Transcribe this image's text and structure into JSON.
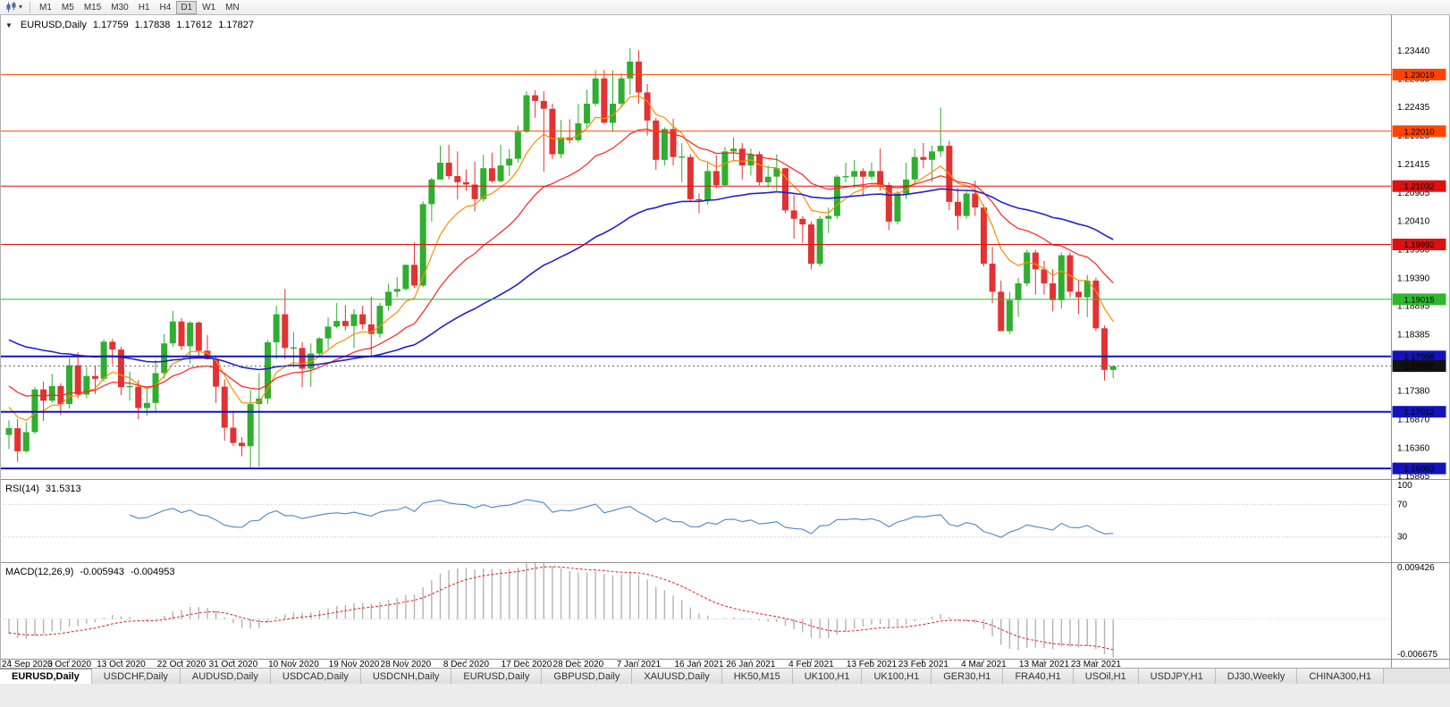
{
  "colors": {
    "candle_up": "#2fae2f",
    "candle_down": "#e23232",
    "accent_blue": "#1313bb",
    "accent_red": "#dd1111",
    "accent_orangered": "#ff4500",
    "accent_green": "#2db82d"
  },
  "toolbar": {
    "timeframes": [
      "M1",
      "M5",
      "M15",
      "M30",
      "H1",
      "H4",
      "D1",
      "W1",
      "MN"
    ],
    "active": "D1"
  },
  "header": {
    "symbol_tf": "EURUSD,Daily",
    "open": "1.17759",
    "high": "1.17838",
    "low": "1.17612",
    "close": "1.17827"
  },
  "chart_data": {
    "type": "candlestick",
    "symbol": "EURUSD",
    "timeframe": "Daily",
    "candles": [
      [
        1.166,
        1.1686,
        1.1635,
        1.1672
      ],
      [
        1.1672,
        1.1688,
        1.1612,
        1.1631
      ],
      [
        1.1631,
        1.1683,
        1.1628,
        1.1665
      ],
      [
        1.1665,
        1.1745,
        1.1662,
        1.1741
      ],
      [
        1.1741,
        1.1755,
        1.1685,
        1.1721
      ],
      [
        1.1721,
        1.1769,
        1.1717,
        1.1747
      ],
      [
        1.1747,
        1.1752,
        1.1695,
        1.1715
      ],
      [
        1.1715,
        1.1797,
        1.1707,
        1.1784
      ],
      [
        1.1784,
        1.1807,
        1.1725,
        1.1732
      ],
      [
        1.1732,
        1.1781,
        1.1725,
        1.1765
      ],
      [
        1.1765,
        1.1782,
        1.1733,
        1.176
      ],
      [
        1.176,
        1.183,
        1.1755,
        1.1826
      ],
      [
        1.1826,
        1.1831,
        1.1785,
        1.1812
      ],
      [
        1.1812,
        1.1817,
        1.1731,
        1.1745
      ],
      [
        1.1745,
        1.1773,
        1.1721,
        1.1746
      ],
      [
        1.1746,
        1.1758,
        1.1688,
        1.1708
      ],
      [
        1.1708,
        1.1747,
        1.1694,
        1.1717
      ],
      [
        1.1717,
        1.1794,
        1.1703,
        1.177
      ],
      [
        1.177,
        1.184,
        1.176,
        1.1823
      ],
      [
        1.1823,
        1.1881,
        1.1817,
        1.1862
      ],
      [
        1.1862,
        1.1868,
        1.1811,
        1.1818
      ],
      [
        1.1818,
        1.1863,
        1.1787,
        1.186
      ],
      [
        1.186,
        1.1863,
        1.18,
        1.181
      ],
      [
        1.181,
        1.1838,
        1.1794,
        1.1795
      ],
      [
        1.1795,
        1.18,
        1.1717,
        1.1746
      ],
      [
        1.1746,
        1.1759,
        1.165,
        1.1673
      ],
      [
        1.1673,
        1.1703,
        1.164,
        1.1646
      ],
      [
        1.1646,
        1.1656,
        1.1622,
        1.164
      ],
      [
        1.164,
        1.174,
        1.1602,
        1.1715
      ],
      [
        1.1715,
        1.177,
        1.1603,
        1.1725
      ],
      [
        1.1725,
        1.1829,
        1.1715,
        1.1825
      ],
      [
        1.1825,
        1.189,
        1.1795,
        1.1875
      ],
      [
        1.1875,
        1.192,
        1.1795,
        1.1815
      ],
      [
        1.1815,
        1.1843,
        1.178,
        1.1815
      ],
      [
        1.1815,
        1.1825,
        1.1745,
        1.1778
      ],
      [
        1.1778,
        1.1823,
        1.1746,
        1.1805
      ],
      [
        1.1805,
        1.1834,
        1.1799,
        1.1832
      ],
      [
        1.1832,
        1.1869,
        1.1814,
        1.1853
      ],
      [
        1.1853,
        1.1895,
        1.185,
        1.1863
      ],
      [
        1.1863,
        1.1891,
        1.1846,
        1.1854
      ],
      [
        1.1854,
        1.1884,
        1.1815,
        1.1875
      ],
      [
        1.1875,
        1.189,
        1.1848,
        1.1857
      ],
      [
        1.1857,
        1.1906,
        1.18,
        1.184
      ],
      [
        1.184,
        1.1895,
        1.1833,
        1.189
      ],
      [
        1.189,
        1.1929,
        1.1881,
        1.1915
      ],
      [
        1.1915,
        1.1941,
        1.1905,
        1.192
      ],
      [
        1.192,
        1.1964,
        1.1917,
        1.1963
      ],
      [
        1.1963,
        1.2003,
        1.1922,
        1.1926
      ],
      [
        1.1926,
        1.2076,
        1.1923,
        1.2071
      ],
      [
        1.2071,
        1.2118,
        1.204,
        1.2115
      ],
      [
        1.2115,
        1.2175,
        1.2114,
        1.2145
      ],
      [
        1.2145,
        1.2177,
        1.2115,
        1.2121
      ],
      [
        1.2121,
        1.2165,
        1.2079,
        1.211
      ],
      [
        1.211,
        1.2133,
        1.2095,
        1.2106
      ],
      [
        1.2106,
        1.2147,
        1.2058,
        1.208
      ],
      [
        1.208,
        1.2159,
        1.2075,
        1.2135
      ],
      [
        1.2135,
        1.2163,
        1.2109,
        1.2112
      ],
      [
        1.2112,
        1.2177,
        1.211,
        1.214
      ],
      [
        1.214,
        1.2169,
        1.2121,
        1.2152
      ],
      [
        1.2152,
        1.2211,
        1.2145,
        1.22
      ],
      [
        1.22,
        1.2272,
        1.2198,
        1.2265
      ],
      [
        1.2265,
        1.2274,
        1.2225,
        1.2255
      ],
      [
        1.2255,
        1.2272,
        1.2129,
        1.2241
      ],
      [
        1.2241,
        1.225,
        1.2151,
        1.216
      ],
      [
        1.216,
        1.2221,
        1.2153,
        1.219
      ],
      [
        1.219,
        1.2222,
        1.2179,
        1.2185
      ],
      [
        1.2185,
        1.225,
        1.2181,
        1.2215
      ],
      [
        1.2215,
        1.2275,
        1.2208,
        1.225
      ],
      [
        1.225,
        1.231,
        1.2245,
        1.2295
      ],
      [
        1.2295,
        1.231,
        1.2214,
        1.2216
      ],
      [
        1.2216,
        1.2309,
        1.22,
        1.225
      ],
      [
        1.225,
        1.2304,
        1.2245,
        1.2295
      ],
      [
        1.2295,
        1.2349,
        1.2266,
        1.2325
      ],
      [
        1.2325,
        1.2345,
        1.225,
        1.227
      ],
      [
        1.227,
        1.2285,
        1.2193,
        1.222
      ],
      [
        1.222,
        1.2225,
        1.2132,
        1.215
      ],
      [
        1.215,
        1.2208,
        1.214,
        1.2205
      ],
      [
        1.2205,
        1.2223,
        1.214,
        1.2155
      ],
      [
        1.2155,
        1.218,
        1.211,
        1.2155
      ],
      [
        1.2155,
        1.216,
        1.2075,
        1.208
      ],
      [
        1.208,
        1.209,
        1.2055,
        1.2078
      ],
      [
        1.2078,
        1.2145,
        1.207,
        1.213
      ],
      [
        1.213,
        1.2158,
        1.21,
        1.2105
      ],
      [
        1.2105,
        1.2173,
        1.2103,
        1.2165
      ],
      [
        1.2165,
        1.219,
        1.215,
        1.217
      ],
      [
        1.217,
        1.218,
        1.2115,
        1.214
      ],
      [
        1.214,
        1.217,
        1.2122,
        1.216
      ],
      [
        1.216,
        1.2165,
        1.2105,
        1.211
      ],
      [
        1.211,
        1.214,
        1.21,
        1.212
      ],
      [
        1.212,
        1.216,
        1.2095,
        1.2135
      ],
      [
        1.2135,
        1.2136,
        1.2055,
        1.206
      ],
      [
        1.206,
        1.2087,
        1.201,
        1.2045
      ],
      [
        1.2045,
        1.205,
        1.2002,
        1.2035
      ],
      [
        1.2035,
        1.204,
        1.1955,
        1.1965
      ],
      [
        1.1965,
        1.205,
        1.196,
        1.2045
      ],
      [
        1.2045,
        1.2065,
        1.202,
        1.205
      ],
      [
        1.205,
        1.2123,
        1.2045,
        1.212
      ],
      [
        1.212,
        1.2145,
        1.211,
        1.212
      ],
      [
        1.212,
        1.215,
        1.21,
        1.213
      ],
      [
        1.213,
        1.2135,
        1.2085,
        1.212
      ],
      [
        1.212,
        1.2145,
        1.2115,
        1.213
      ],
      [
        1.213,
        1.217,
        1.2095,
        1.2105
      ],
      [
        1.2105,
        1.211,
        1.2025,
        1.204
      ],
      [
        1.204,
        1.2095,
        1.2035,
        1.209
      ],
      [
        1.209,
        1.2145,
        1.208,
        1.2115
      ],
      [
        1.2115,
        1.217,
        1.211,
        1.2155
      ],
      [
        1.2155,
        1.218,
        1.2135,
        1.215
      ],
      [
        1.215,
        1.2175,
        1.211,
        1.2165
      ],
      [
        1.2165,
        1.2243,
        1.2155,
        1.2175
      ],
      [
        1.2175,
        1.2184,
        1.206,
        1.2075
      ],
      [
        1.2075,
        1.21,
        1.2025,
        1.205
      ],
      [
        1.205,
        1.2095,
        1.2045,
        1.209
      ],
      [
        1.209,
        1.2113,
        1.205,
        1.2065
      ],
      [
        1.2065,
        1.207,
        1.196,
        1.1965
      ],
      [
        1.1965,
        1.1995,
        1.1895,
        1.1915
      ],
      [
        1.1915,
        1.1935,
        1.1845,
        1.1845
      ],
      [
        1.1845,
        1.1915,
        1.184,
        1.19
      ],
      [
        1.19,
        1.194,
        1.187,
        1.193
      ],
      [
        1.193,
        1.199,
        1.1925,
        1.1985
      ],
      [
        1.1985,
        1.199,
        1.191,
        1.1955
      ],
      [
        1.1955,
        1.197,
        1.191,
        1.193
      ],
      [
        1.193,
        1.1955,
        1.188,
        1.19
      ],
      [
        1.19,
        1.1985,
        1.1885,
        1.198
      ],
      [
        1.198,
        1.1985,
        1.1905,
        1.1915
      ],
      [
        1.1915,
        1.1935,
        1.1875,
        1.1905
      ],
      [
        1.1905,
        1.1945,
        1.187,
        1.1935
      ],
      [
        1.1935,
        1.194,
        1.1845,
        1.185
      ],
      [
        1.185,
        1.1855,
        1.1757,
        1.1776
      ],
      [
        1.17759,
        1.17838,
        1.17612,
        1.17827
      ]
    ],
    "date_labels": [
      {
        "i": 0,
        "t": "24 Sep 2020"
      },
      {
        "i": 7,
        "t": "3 Oct 2020"
      },
      {
        "i": 13,
        "t": "13 Oct 2020"
      },
      {
        "i": 20,
        "t": "22 Oct 2020"
      },
      {
        "i": 26,
        "t": "31 Oct 2020"
      },
      {
        "i": 33,
        "t": "10 Nov 2020"
      },
      {
        "i": 40,
        "t": "19 Nov 2020"
      },
      {
        "i": 46,
        "t": "28 Nov 2020"
      },
      {
        "i": 53,
        "t": "8 Dec 2020"
      },
      {
        "i": 60,
        "t": "17 Dec 2020"
      },
      {
        "i": 66,
        "t": "28 Dec 2020"
      },
      {
        "i": 73,
        "t": "7 Jan 2021"
      },
      {
        "i": 80,
        "t": "16 Jan 2021"
      },
      {
        "i": 86,
        "t": "26 Jan 2021"
      },
      {
        "i": 93,
        "t": "4 Feb 2021"
      },
      {
        "i": 100,
        "t": "13 Feb 2021"
      },
      {
        "i": 106,
        "t": "23 Feb 2021"
      },
      {
        "i": 113,
        "t": "4 Mar 2021"
      },
      {
        "i": 120,
        "t": "13 Mar 2021"
      },
      {
        "i": 126,
        "t": "23 Mar 2021"
      }
    ],
    "price_axis": [
      "1.23440",
      "1.22935",
      "1.22435",
      "1.21925",
      "1.21415",
      "1.20905",
      "1.20410",
      "1.19900",
      "1.19390",
      "1.18895",
      "1.18385",
      "1.17880",
      "1.17380",
      "1.16870",
      "1.16360",
      "1.15865"
    ],
    "overlays": [
      {
        "name": "ma-fast-line",
        "period": 8,
        "color": "#ff8c00"
      },
      {
        "name": "ma-mid-line",
        "period": 20,
        "color": "#ff2020"
      },
      {
        "name": "ma-slow-line",
        "period": 55,
        "color": "#2222cc"
      }
    ],
    "hlines": [
      {
        "price": 1.23019,
        "label": "1.23019",
        "color": "#ff4500",
        "width": 1
      },
      {
        "price": 1.2201,
        "label": "1.22010",
        "color": "#ff4500",
        "width": 1
      },
      {
        "price": 1.21032,
        "label": "1.21032",
        "color": "#dd1111",
        "width": 1
      },
      {
        "price": 1.19992,
        "label": "1.19992",
        "color": "#dd1111",
        "width": 1
      },
      {
        "price": 1.19015,
        "label": "1.19015",
        "color": "#2db82d",
        "width": 1
      },
      {
        "price": 1.17998,
        "label": "1.17998",
        "color": "#1313bb",
        "width": 2
      },
      {
        "price": 1.17012,
        "label": "1.17012",
        "color": "#1313bb",
        "width": 2
      },
      {
        "price": 1.16003,
        "label": "1.16003",
        "color": "#1313bb",
        "width": 2
      }
    ],
    "current_price": {
      "value": 1.17827,
      "label": "1.17827",
      "badge_color": "#111111"
    },
    "rsi": {
      "title": "RSI(14)",
      "period": 14,
      "value_text": "31.5313",
      "levels": [
        100,
        70,
        30
      ],
      "color": "#4a86c8"
    },
    "macd": {
      "title": "MACD(12,26,9)",
      "fast": 12,
      "slow": 26,
      "signal": 9,
      "value_text": "-0.005943",
      "signal_text": "-0.004953",
      "scale_top": "0.009426",
      "scale_bottom": "-0.006675",
      "hist_color": "#b3b3b3",
      "signal_color": "#dd2222"
    }
  },
  "tabs": [
    {
      "label": "EURUSD,Daily",
      "active": true
    },
    {
      "label": "USDCHF,Daily",
      "active": false
    },
    {
      "label": "AUDUSD,Daily",
      "active": false
    },
    {
      "label": "USDCAD,Daily",
      "active": false
    },
    {
      "label": "USDCNH,Daily",
      "active": false
    },
    {
      "label": "EURUSD,Daily",
      "active": false
    },
    {
      "label": "GBPUSD,Daily",
      "active": false
    },
    {
      "label": "XAUUSD,Daily",
      "active": false
    },
    {
      "label": "HK50,M15",
      "active": false
    },
    {
      "label": "UK100,H1",
      "active": false
    },
    {
      "label": "UK100,H1",
      "active": false
    },
    {
      "label": "GER30,H1",
      "active": false
    },
    {
      "label": "FRA40,H1",
      "active": false
    },
    {
      "label": "USOil,H1",
      "active": false
    },
    {
      "label": "USDJPY,H1",
      "active": false
    },
    {
      "label": "DJ30,Weekly",
      "active": false
    },
    {
      "label": "CHINA300,H1",
      "active": false
    }
  ]
}
